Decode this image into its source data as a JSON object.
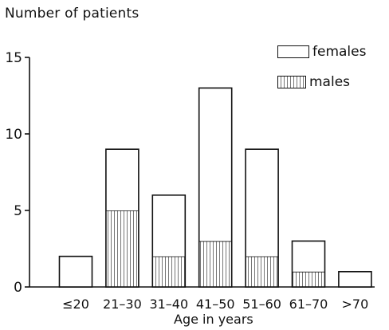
{
  "chart_data": {
    "type": "bar",
    "stacked": true,
    "categories": [
      "≤20",
      "21–30",
      "31–40",
      "41–50",
      "51–60",
      "61–70",
      ">70"
    ],
    "series": [
      {
        "name": "males",
        "values": [
          0,
          5,
          2,
          3,
          2,
          1,
          0
        ]
      },
      {
        "name": "females",
        "values": [
          2,
          4,
          4,
          10,
          7,
          2,
          1
        ]
      }
    ],
    "totals": [
      2,
      9,
      6,
      13,
      9,
      3,
      1
    ],
    "ylabel": "Number of patients",
    "xlabel": "Age in years",
    "ylim": [
      0,
      15
    ],
    "yticks": [
      0,
      5,
      10,
      15
    ],
    "legend_position": "top-right",
    "grid": false,
    "legend": [
      {
        "name": "females",
        "style": "empty"
      },
      {
        "name": "males",
        "style": "vertical-hatch"
      }
    ],
    "colors": {
      "stroke": "#111111",
      "hatch": "#777777",
      "fill": "#ffffff"
    }
  }
}
